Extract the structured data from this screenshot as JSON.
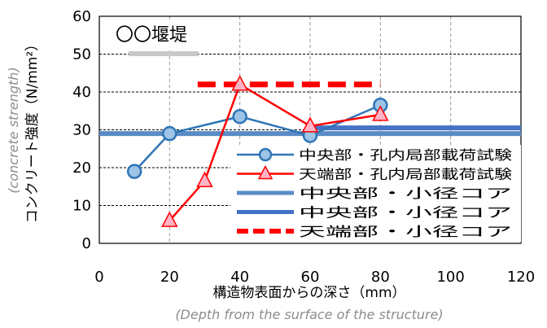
{
  "chart_data": {
    "type": "line",
    "title": "",
    "annotation": "〇〇堰堤",
    "xlabel": "構造物表面からの深さ（mm）",
    "xlabel_translation": "(Depth from the surface of the structure)",
    "ylabel": "コンクリート強度（N/mm²）",
    "ylabel_translation": "(concrete strength)",
    "xlim": [
      0,
      120
    ],
    "ylim": [
      0,
      60
    ],
    "xticks": [
      "0",
      "20",
      "40",
      "60",
      "80",
      "100",
      "120"
    ],
    "yticks": [
      "0",
      "10",
      "20",
      "30",
      "40",
      "50",
      "60"
    ],
    "grid": true,
    "legend_position": "bottom-right",
    "series": [
      {
        "name": "中央部・孔内局部載荷試験",
        "kind": "line-marker-circle",
        "color": "#2e75b6",
        "marker_fill": "#9dc3e6",
        "x": [
          10,
          20,
          40,
          60,
          80
        ],
        "y": [
          19,
          29,
          33.5,
          28.5,
          36.5
        ]
      },
      {
        "name": "天端部・孔内局部載荷試験",
        "kind": "line-marker-triangle",
        "color": "#ff0000",
        "marker_fill": "#ffb3c6",
        "x": [
          20,
          30,
          40,
          60,
          80
        ],
        "y": [
          6,
          16.5,
          42,
          31,
          34
        ]
      },
      {
        "name": "中央部・小径コア",
        "kind": "hline",
        "color": "#5b8bc5",
        "x": [
          0,
          120
        ],
        "y": [
          29,
          29
        ]
      },
      {
        "name": "中央部・小径コア",
        "kind": "hline",
        "color": "#4472c4",
        "x": [
          60,
          120
        ],
        "y": [
          30.5,
          30.5
        ]
      },
      {
        "name": "天端部・小径コア",
        "kind": "hline-dashed",
        "color": "#ff0000",
        "x": [
          28,
          80
        ],
        "y": [
          42,
          42
        ]
      }
    ]
  }
}
